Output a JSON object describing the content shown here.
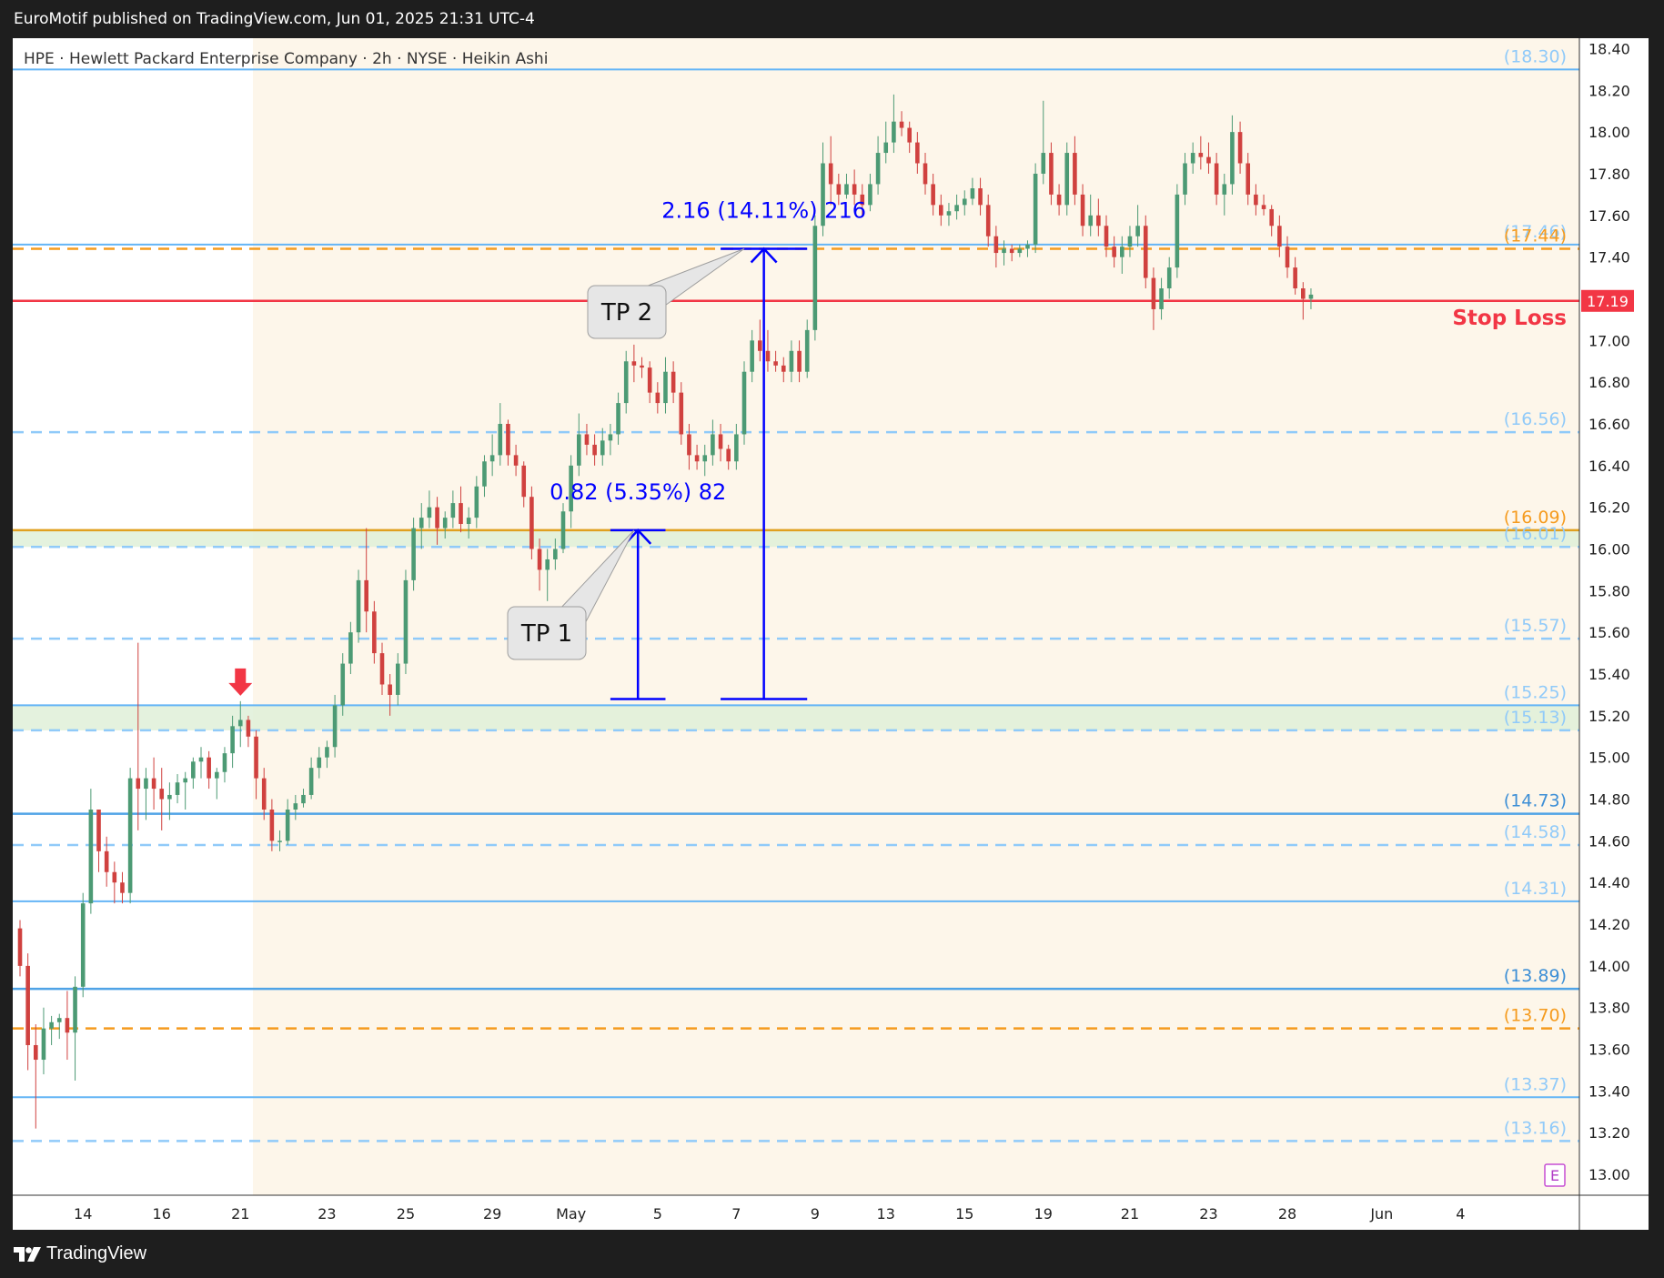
{
  "header": {
    "publisher": "EuroMotif published on TradingView.com, Jun 01, 2025 21:31 UTC-4"
  },
  "footer": {
    "brand": "TradingView"
  },
  "colors": {
    "background": "#fdf6ea",
    "up": "#4c9a74",
    "down": "#d0413f",
    "solid_level": "#64b5f6",
    "dashed_level": "#90caf9",
    "orange_level": "#f59b1e",
    "stop_loss": "#f23645",
    "measure": "#0000ff",
    "zone": "#dff0d8"
  },
  "chart_data": {
    "type": "candlestick",
    "title": "HPE · Hewlett Packard Enterprise Company · 2h · NYSE · Heikin Ashi",
    "ylim": [
      12.9,
      18.45
    ],
    "yticks": [
      "18.40",
      "18.20",
      "18.00",
      "17.80",
      "17.60",
      "17.40",
      "17.20",
      "17.00",
      "16.80",
      "16.60",
      "16.40",
      "16.20",
      "16.00",
      "15.80",
      "15.60",
      "15.40",
      "15.20",
      "15.00",
      "14.80",
      "14.60",
      "14.40",
      "14.20",
      "14.00",
      "13.80",
      "13.60",
      "13.40",
      "13.20",
      "13.00"
    ],
    "xticks": [
      "14",
      "16",
      "21",
      "23",
      "25",
      "29",
      "May",
      "5",
      "7",
      "9",
      "13",
      "15",
      "19",
      "21",
      "23",
      "28",
      "Jun",
      "4"
    ],
    "xtick_bar_index": [
      8,
      18,
      28,
      39,
      49,
      60,
      70,
      81,
      91,
      101,
      110,
      120,
      130,
      141,
      151,
      161,
      173,
      183
    ],
    "total_bars": 185,
    "last_price": "17.19",
    "levels": [
      {
        "value": 18.3,
        "label": "(18.30)",
        "style": "solid"
      },
      {
        "value": 17.46,
        "label": "(17.46)",
        "style": "solid"
      },
      {
        "value": 17.44,
        "label": "(17.44)",
        "style": "orange-dashed"
      },
      {
        "value": 17.19,
        "label": "Stop Loss",
        "style": "stop"
      },
      {
        "value": 16.56,
        "label": "(16.56)",
        "style": "dashed"
      },
      {
        "value": 16.09,
        "label": "(16.09)",
        "style": "orange-solid"
      },
      {
        "value": 16.01,
        "label": "(16.01)",
        "style": "dashed"
      },
      {
        "value": 15.57,
        "label": "(15.57)",
        "style": "dashed"
      },
      {
        "value": 15.25,
        "label": "(15.25)",
        "style": "solid"
      },
      {
        "value": 15.13,
        "label": "(15.13)",
        "style": "dashed"
      },
      {
        "value": 14.73,
        "label": "(14.73)",
        "style": "solid-strong"
      },
      {
        "value": 14.58,
        "label": "(14.58)",
        "style": "dashed"
      },
      {
        "value": 14.31,
        "label": "(14.31)",
        "style": "solid"
      },
      {
        "value": 13.89,
        "label": "(13.89)",
        "style": "solid-strong"
      },
      {
        "value": 13.7,
        "label": "(13.70)",
        "style": "orange-dashed"
      },
      {
        "value": 13.37,
        "label": "(13.37)",
        "style": "solid"
      },
      {
        "value": 13.16,
        "label": "(13.16)",
        "style": "dashed"
      }
    ],
    "zones": [
      {
        "from": 16.01,
        "to": 16.09
      },
      {
        "from": 15.13,
        "to": 15.25
      }
    ],
    "measures": [
      {
        "label": "0.82 (5.35%) 82",
        "from": 15.28,
        "to": 16.09,
        "bar_from": 75,
        "bar_to": 82
      },
      {
        "label": "2.16 (14.11%) 216",
        "from": 15.28,
        "to": 17.44,
        "bar_from": 89,
        "bar_to": 100
      }
    ],
    "callouts": [
      {
        "label": "TP 1",
        "price": 16.09,
        "bar": 78
      },
      {
        "label": "TP 2",
        "price": 17.44,
        "bar": 92
      }
    ],
    "signal_arrow": {
      "bar": 28,
      "price": 15.27,
      "direction": "down"
    },
    "earnings_marker": "E",
    "candles": [
      [
        14.18,
        14.22,
        13.95,
        14.0
      ],
      [
        14.0,
        14.06,
        13.5,
        13.62
      ],
      [
        13.62,
        13.72,
        13.22,
        13.55
      ],
      [
        13.55,
        13.8,
        13.48,
        13.7
      ],
      [
        13.7,
        13.76,
        13.62,
        13.73
      ],
      [
        13.73,
        13.77,
        13.65,
        13.75
      ],
      [
        13.75,
        13.88,
        13.55,
        13.68
      ],
      [
        13.68,
        13.95,
        13.45,
        13.9
      ],
      [
        13.9,
        14.35,
        13.85,
        14.3
      ],
      [
        14.3,
        14.85,
        14.25,
        14.75
      ],
      [
        14.75,
        14.75,
        14.45,
        14.55
      ],
      [
        14.55,
        14.62,
        14.38,
        14.45
      ],
      [
        14.45,
        14.5,
        14.3,
        14.4
      ],
      [
        14.4,
        14.45,
        14.3,
        14.35
      ],
      [
        14.35,
        14.95,
        14.3,
        14.9
      ],
      [
        14.9,
        15.55,
        14.65,
        14.85
      ],
      [
        14.85,
        14.95,
        14.7,
        14.9
      ],
      [
        14.9,
        15.0,
        14.75,
        14.85
      ],
      [
        14.85,
        14.95,
        14.65,
        14.8
      ],
      [
        14.8,
        14.88,
        14.7,
        14.82
      ],
      [
        14.82,
        14.92,
        14.78,
        14.88
      ],
      [
        14.88,
        14.93,
        14.75,
        14.9
      ],
      [
        14.9,
        15.0,
        14.85,
        14.98
      ],
      [
        14.98,
        15.05,
        14.9,
        15.0
      ],
      [
        15.0,
        15.03,
        14.85,
        14.9
      ],
      [
        14.9,
        14.95,
        14.8,
        14.93
      ],
      [
        14.93,
        15.05,
        14.88,
        15.02
      ],
      [
        15.02,
        15.2,
        14.95,
        15.15
      ],
      [
        15.15,
        15.27,
        15.05,
        15.18
      ],
      [
        15.18,
        15.2,
        15.05,
        15.1
      ],
      [
        15.1,
        15.13,
        14.8,
        14.9
      ],
      [
        14.9,
        14.95,
        14.7,
        14.75
      ],
      [
        14.75,
        14.8,
        14.55,
        14.6
      ],
      [
        14.6,
        14.65,
        14.55,
        14.6
      ],
      [
        14.6,
        14.8,
        14.58,
        14.75
      ],
      [
        14.75,
        14.82,
        14.7,
        14.78
      ],
      [
        14.78,
        14.85,
        14.76,
        14.82
      ],
      [
        14.82,
        15.0,
        14.8,
        14.95
      ],
      [
        14.95,
        15.05,
        14.9,
        15.0
      ],
      [
        15.0,
        15.08,
        14.95,
        15.05
      ],
      [
        15.05,
        15.3,
        15.0,
        15.25
      ],
      [
        15.25,
        15.5,
        15.2,
        15.45
      ],
      [
        15.45,
        15.65,
        15.4,
        15.6
      ],
      [
        15.6,
        15.9,
        15.55,
        15.85
      ],
      [
        15.85,
        16.1,
        15.6,
        15.7
      ],
      [
        15.7,
        15.75,
        15.45,
        15.5
      ],
      [
        15.5,
        15.55,
        15.3,
        15.35
      ],
      [
        15.35,
        15.4,
        15.2,
        15.3
      ],
      [
        15.3,
        15.5,
        15.25,
        15.45
      ],
      [
        15.45,
        15.9,
        15.4,
        15.85
      ],
      [
        15.85,
        16.15,
        15.8,
        16.1
      ],
      [
        16.1,
        16.22,
        16.0,
        16.15
      ],
      [
        16.15,
        16.28,
        16.1,
        16.2
      ],
      [
        16.2,
        16.25,
        16.02,
        16.1
      ],
      [
        16.1,
        16.18,
        16.05,
        16.15
      ],
      [
        16.15,
        16.28,
        16.1,
        16.22
      ],
      [
        16.22,
        16.3,
        16.08,
        16.12
      ],
      [
        16.12,
        16.2,
        16.05,
        16.15
      ],
      [
        16.15,
        16.35,
        16.1,
        16.3
      ],
      [
        16.3,
        16.45,
        16.25,
        16.42
      ],
      [
        16.42,
        16.55,
        16.35,
        16.45
      ],
      [
        16.45,
        16.7,
        16.4,
        16.6
      ],
      [
        16.6,
        16.62,
        16.4,
        16.45
      ],
      [
        16.45,
        16.5,
        16.35,
        16.4
      ],
      [
        16.4,
        16.42,
        16.2,
        16.25
      ],
      [
        16.25,
        16.3,
        15.95,
        16.0
      ],
      [
        16.0,
        16.05,
        15.8,
        15.9
      ],
      [
        15.9,
        16.0,
        15.75,
        15.95
      ],
      [
        15.95,
        16.05,
        15.9,
        16.0
      ],
      [
        16.0,
        16.22,
        15.98,
        16.18
      ],
      [
        16.18,
        16.45,
        16.1,
        16.4
      ],
      [
        16.4,
        16.65,
        16.35,
        16.55
      ],
      [
        16.55,
        16.6,
        16.45,
        16.5
      ],
      [
        16.5,
        16.55,
        16.4,
        16.45
      ],
      [
        16.45,
        16.58,
        16.4,
        16.52
      ],
      [
        16.52,
        16.6,
        16.45,
        16.55
      ],
      [
        16.55,
        16.75,
        16.5,
        16.7
      ],
      [
        16.7,
        16.95,
        16.65,
        16.9
      ],
      [
        16.9,
        16.98,
        16.8,
        16.88
      ],
      [
        16.88,
        16.92,
        16.82,
        16.87
      ],
      [
        16.87,
        16.9,
        16.7,
        16.75
      ],
      [
        16.75,
        16.8,
        16.65,
        16.7
      ],
      [
        16.7,
        16.92,
        16.65,
        16.85
      ],
      [
        16.85,
        16.9,
        16.7,
        16.75
      ],
      [
        16.75,
        16.8,
        16.5,
        16.55
      ],
      [
        16.55,
        16.6,
        16.38,
        16.45
      ],
      [
        16.45,
        16.5,
        16.38,
        16.42
      ],
      [
        16.42,
        16.5,
        16.35,
        16.45
      ],
      [
        16.45,
        16.62,
        16.4,
        16.55
      ],
      [
        16.55,
        16.6,
        16.42,
        16.48
      ],
      [
        16.48,
        16.5,
        16.38,
        16.42
      ],
      [
        16.42,
        16.6,
        16.38,
        16.55
      ],
      [
        16.55,
        16.9,
        16.5,
        16.85
      ],
      [
        16.85,
        17.05,
        16.8,
        17.0
      ],
      [
        17.0,
        17.1,
        16.9,
        16.95
      ],
      [
        16.95,
        17.05,
        16.85,
        16.9
      ],
      [
        16.9,
        16.95,
        16.85,
        16.88
      ],
      [
        16.88,
        16.92,
        16.8,
        16.85
      ],
      [
        16.85,
        17.0,
        16.8,
        16.95
      ],
      [
        16.95,
        17.0,
        16.8,
        16.85
      ],
      [
        16.85,
        17.1,
        16.82,
        17.05
      ],
      [
        17.05,
        17.6,
        17.0,
        17.55
      ],
      [
        17.55,
        17.95,
        17.5,
        17.85
      ],
      [
        17.85,
        17.98,
        17.65,
        17.75
      ],
      [
        17.75,
        17.8,
        17.65,
        17.7
      ],
      [
        17.7,
        17.8,
        17.68,
        17.75
      ],
      [
        17.75,
        17.82,
        17.65,
        17.7
      ],
      [
        17.7,
        17.75,
        17.6,
        17.65
      ],
      [
        17.65,
        17.8,
        17.62,
        17.75
      ],
      [
        17.75,
        17.98,
        17.7,
        17.9
      ],
      [
        17.9,
        18.05,
        17.85,
        17.95
      ],
      [
        17.95,
        18.18,
        17.9,
        18.05
      ],
      [
        18.05,
        18.1,
        17.98,
        18.02
      ],
      [
        18.02,
        18.05,
        17.9,
        17.95
      ],
      [
        17.95,
        18.0,
        17.8,
        17.85
      ],
      [
        17.85,
        17.9,
        17.7,
        17.75
      ],
      [
        17.75,
        17.8,
        17.6,
        17.65
      ],
      [
        17.65,
        17.7,
        17.55,
        17.6
      ],
      [
        17.6,
        17.66,
        17.55,
        17.62
      ],
      [
        17.62,
        17.7,
        17.58,
        17.65
      ],
      [
        17.65,
        17.72,
        17.6,
        17.68
      ],
      [
        17.68,
        17.78,
        17.65,
        17.73
      ],
      [
        17.73,
        17.78,
        17.6,
        17.65
      ],
      [
        17.65,
        17.7,
        17.45,
        17.5
      ],
      [
        17.5,
        17.55,
        17.35,
        17.42
      ],
      [
        17.42,
        17.48,
        17.36,
        17.44
      ],
      [
        17.44,
        17.46,
        17.38,
        17.42
      ],
      [
        17.42,
        17.46,
        17.4,
        17.44
      ],
      [
        17.44,
        17.48,
        17.4,
        17.46
      ],
      [
        17.46,
        17.85,
        17.42,
        17.8
      ],
      [
        17.8,
        18.15,
        17.75,
        17.9
      ],
      [
        17.9,
        17.95,
        17.65,
        17.7
      ],
      [
        17.7,
        17.75,
        17.6,
        17.65
      ],
      [
        17.65,
        17.95,
        17.6,
        17.9
      ],
      [
        17.9,
        17.98,
        17.65,
        17.7
      ],
      [
        17.7,
        17.75,
        17.5,
        17.55
      ],
      [
        17.55,
        17.7,
        17.5,
        17.6
      ],
      [
        17.6,
        17.68,
        17.5,
        17.55
      ],
      [
        17.55,
        17.6,
        17.4,
        17.45
      ],
      [
        17.45,
        17.5,
        17.35,
        17.4
      ],
      [
        17.4,
        17.5,
        17.32,
        17.45
      ],
      [
        17.45,
        17.55,
        17.4,
        17.5
      ],
      [
        17.5,
        17.65,
        17.45,
        17.55
      ],
      [
        17.55,
        17.6,
        17.25,
        17.3
      ],
      [
        17.3,
        17.35,
        17.05,
        17.15
      ],
      [
        17.15,
        17.3,
        17.1,
        17.25
      ],
      [
        17.25,
        17.4,
        17.2,
        17.35
      ],
      [
        17.35,
        17.75,
        17.3,
        17.7
      ],
      [
        17.7,
        17.9,
        17.65,
        17.85
      ],
      [
        17.85,
        17.95,
        17.8,
        17.9
      ],
      [
        17.9,
        17.98,
        17.82,
        17.88
      ],
      [
        17.88,
        17.95,
        17.8,
        17.85
      ],
      [
        17.85,
        17.9,
        17.65,
        17.7
      ],
      [
        17.7,
        17.8,
        17.6,
        17.75
      ],
      [
        17.75,
        18.08,
        17.7,
        18.0
      ],
      [
        18.0,
        18.05,
        17.8,
        17.85
      ],
      [
        17.85,
        17.9,
        17.65,
        17.7
      ],
      [
        17.7,
        17.75,
        17.6,
        17.65
      ],
      [
        17.65,
        17.7,
        17.6,
        17.63
      ],
      [
        17.63,
        17.65,
        17.5,
        17.55
      ],
      [
        17.55,
        17.6,
        17.4,
        17.45
      ],
      [
        17.45,
        17.5,
        17.3,
        17.35
      ],
      [
        17.35,
        17.4,
        17.22,
        17.25
      ],
      [
        17.25,
        17.28,
        17.1,
        17.2
      ],
      [
        17.2,
        17.25,
        17.15,
        17.22
      ]
    ]
  }
}
